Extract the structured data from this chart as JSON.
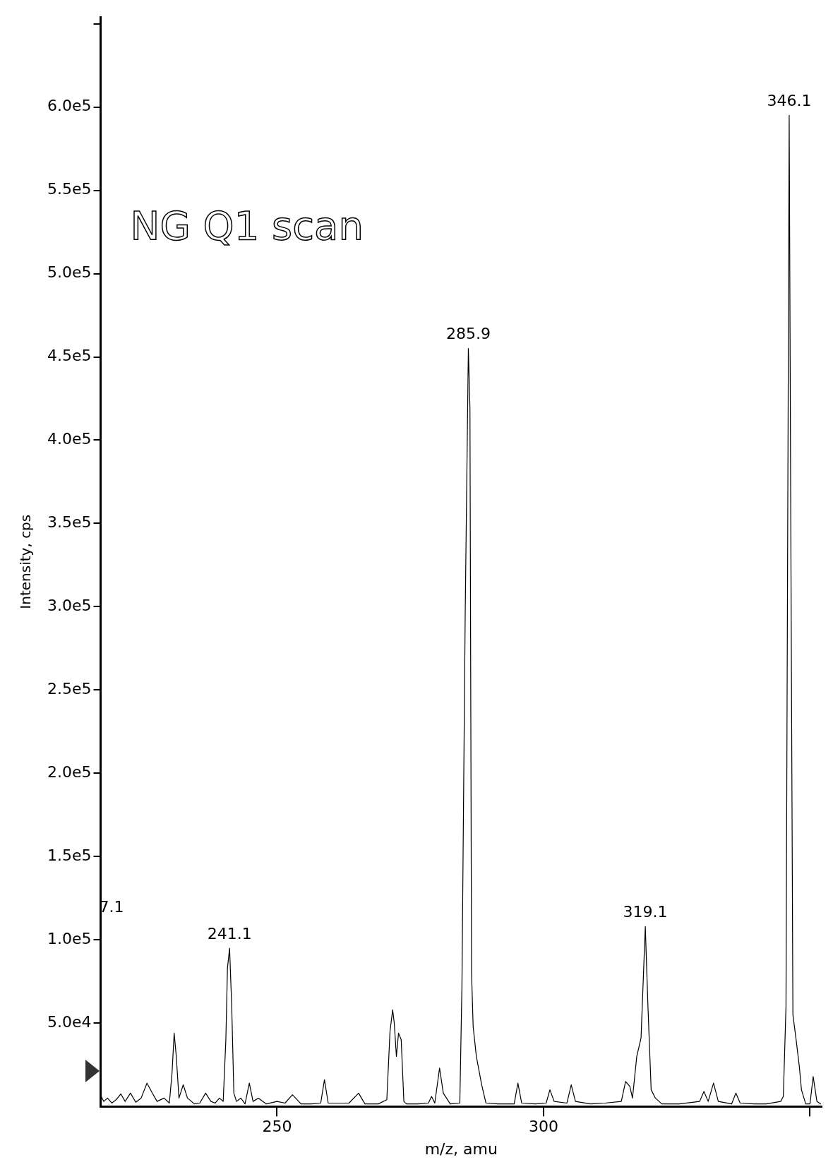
{
  "chart_data": {
    "type": "line",
    "title": "NG Q1 scan",
    "xlabel": "m/z, amu",
    "ylabel": "Intensity, cps",
    "x": [
      217.0,
      217.5,
      218.2,
      219.0,
      219.8,
      220.7,
      221.5,
      222.5,
      223.5,
      224.5,
      225.6,
      226.6,
      227.5,
      228.8,
      229.8,
      230.3,
      230.7,
      231.1,
      231.6,
      232.4,
      233.2,
      234.5,
      235.5,
      236.6,
      237.6,
      238.4,
      239.2,
      239.9,
      240.4,
      240.7,
      241.1,
      241.5,
      241.9,
      242.4,
      243.2,
      244.0,
      244.8,
      245.5,
      246.5,
      248.0,
      250.0,
      251.5,
      252.9,
      254.5,
      256.5,
      258.2,
      258.9,
      259.6,
      261.0,
      263.5,
      265.3,
      266.5,
      269.0,
      270.6,
      271.2,
      271.7,
      272.0,
      272.4,
      272.8,
      273.3,
      273.8,
      274.3,
      276.5,
      278.4,
      279.0,
      279.6,
      280.5,
      281.2,
      282.5,
      284.3,
      284.7,
      285.3,
      285.9,
      286.2,
      286.5,
      286.8,
      287.4,
      288.4,
      289.2,
      291.5,
      294.5,
      295.2,
      295.9,
      298.5,
      300.5,
      301.2,
      302.0,
      304.4,
      305.2,
      306.0,
      308.8,
      311.5,
      314.6,
      315.4,
      316.2,
      316.7,
      317.5,
      318.3,
      319.1,
      319.6,
      320.2,
      321.0,
      322.2,
      325.5,
      329.3,
      330.1,
      330.9,
      331.9,
      332.8,
      335.3,
      336.1,
      336.9,
      339.5,
      341.8,
      344.5,
      345.0,
      345.5,
      345.8,
      346.1,
      346.4,
      346.8,
      347.4,
      348.0,
      348.4,
      349.2,
      350.0,
      350.6,
      351.3,
      352.0
    ],
    "values": [
      6000,
      3000,
      5000,
      2000,
      4000,
      7500,
      3000,
      8000,
      2500,
      5000,
      14000,
      8000,
      3000,
      5000,
      2000,
      20000,
      44000,
      30000,
      5000,
      13000,
      5000,
      1500,
      2000,
      8000,
      3000,
      2000,
      5000,
      3000,
      40000,
      83000,
      95000,
      60000,
      8000,
      3000,
      5000,
      1500,
      14000,
      3000,
      5000,
      1500,
      3000,
      2000,
      7000,
      1500,
      1500,
      2000,
      16000,
      2000,
      2000,
      2000,
      8000,
      1500,
      1500,
      4000,
      45000,
      58000,
      50000,
      30000,
      44000,
      40000,
      3000,
      1500,
      1500,
      2000,
      6000,
      2000,
      23000,
      8000,
      1500,
      2000,
      73000,
      293000,
      455000,
      419000,
      80000,
      48000,
      30000,
      13000,
      2000,
      1500,
      1500,
      14000,
      2000,
      1500,
      2000,
      10000,
      3000,
      2000,
      13000,
      3000,
      1500,
      2000,
      3000,
      15000,
      12000,
      5000,
      30000,
      41000,
      108000,
      60000,
      10000,
      5000,
      1500,
      1500,
      3000,
      9000,
      3000,
      14000,
      3000,
      1500,
      8000,
      2000,
      1500,
      1500,
      3000,
      6000,
      60000,
      328000,
      595000,
      350000,
      55000,
      40000,
      24000,
      10000,
      1500,
      1500,
      18000,
      3000,
      1500
    ],
    "color": "#000000",
    "xlim": [
      216.9,
      352.2
    ],
    "xticks": [
      250,
      300,
      {
        "value": 350,
        "label": null
      }
    ],
    "ylim": [
      0,
      654000
    ],
    "yticks": [
      {
        "value": 50000,
        "label": "5.0e4"
      },
      {
        "value": 100000,
        "label": "1.0e5"
      },
      {
        "value": 150000,
        "label": "1.5e5"
      },
      {
        "value": 200000,
        "label": "2.0e5"
      },
      {
        "value": 250000,
        "label": "2.5e5"
      },
      {
        "value": 300000,
        "label": "3.0e5"
      },
      {
        "value": 350000,
        "label": "3.5e5"
      },
      {
        "value": 400000,
        "label": "4.0e5"
      },
      {
        "value": 450000,
        "label": "4.5e5"
      },
      {
        "value": 500000,
        "label": "5.0e5"
      },
      {
        "value": 550000,
        "label": "5.5e5"
      },
      {
        "value": 600000,
        "label": "6.0e5"
      },
      {
        "value": 650000,
        "label": null
      }
    ],
    "annotations": [
      {
        "text": "241.1",
        "x": 241.1,
        "y": 95000
      },
      {
        "text": "285.9",
        "x": 285.9,
        "y": 455000
      },
      {
        "text": "319.1",
        "x": 319.1,
        "y": 108000
      },
      {
        "text": "346.1",
        "x": 346.1,
        "y": 595000
      },
      "7.1"
    ],
    "grid": false,
    "legend": false,
    "marker": "none"
  }
}
